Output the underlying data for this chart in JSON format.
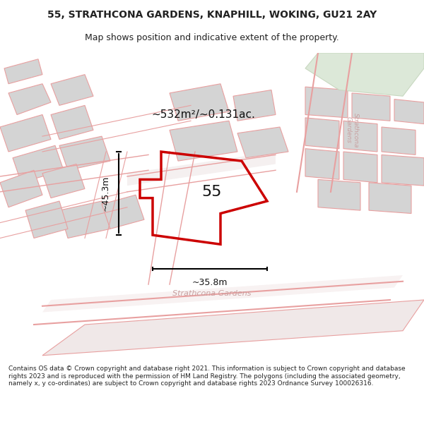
{
  "title_line1": "55, STRATHCONA GARDENS, KNAPHILL, WOKING, GU21 2AY",
  "title_line2": "Map shows position and indicative extent of the property.",
  "footer": "Contains OS data © Crown copyright and database right 2021. This information is subject to Crown copyright and database rights 2023 and is reproduced with the permission of HM Land Registry. The polygons (including the associated geometry, namely x, y co-ordinates) are subject to Crown copyright and database rights 2023 Ordnance Survey 100026316.",
  "area_label": "~532m²/~0.131ac.",
  "number_label": "55",
  "dim_width": "~35.8m",
  "dim_height": "~45.3m",
  "street_label": "Strathcona Gardens",
  "road_label_rotated": "Strathcona Gardens",
  "bg_color": "#ffffff",
  "map_bg": "#f5f0f0",
  "road_fill": "#ffffff",
  "building_fill": "#d0d0d0",
  "building_stroke": "#e8a0a0",
  "road_stroke": "#e8a0a0",
  "plot_stroke": "#cc0000",
  "plot_fill": "none",
  "green_fill": "#d8e8d0"
}
